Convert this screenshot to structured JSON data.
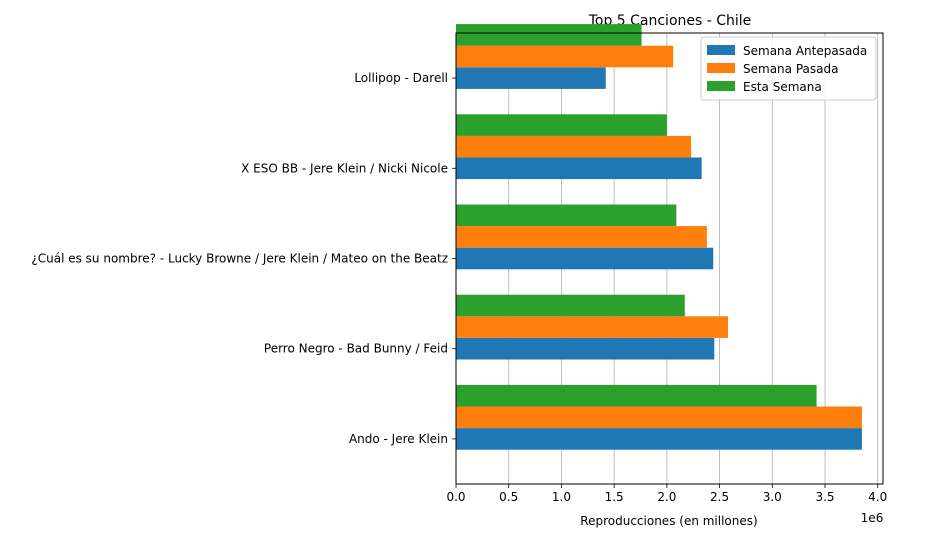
{
  "chart_data": {
    "type": "bar",
    "orientation": "horizontal",
    "title": "Top 5 Canciones - Chile",
    "xlabel": "Reproducciones (en millones)",
    "ylabel": "",
    "x_scale_label": "1e6",
    "xlim": [
      0,
      4050000
    ],
    "x_ticks": [
      0,
      500000,
      1000000,
      1500000,
      2000000,
      2500000,
      3000000,
      3500000,
      4000000
    ],
    "x_tick_labels": [
      "0.0",
      "0.5",
      "1.0",
      "1.5",
      "2.0",
      "2.5",
      "3.0",
      "3.5",
      "4.0"
    ],
    "grid": "vertical",
    "legend_position": "top-right",
    "categories": [
      "Ando - Jere Klein",
      "Perro Negro - Bad Bunny / Feid",
      "¿Cuál es su nombre? - Lucky Browne / Jere Klein / Mateo on the Beatz",
      "X ESO BB - Jere Klein / Nicki Nicole",
      "Lollipop - Darell"
    ],
    "series": [
      {
        "name": "Semana Antepasada",
        "color": "#1f77b4",
        "values": [
          3850000,
          2450000,
          2440000,
          2330000,
          1420000
        ]
      },
      {
        "name": "Semana Pasada",
        "color": "#ff7f0e",
        "values": [
          3850000,
          2580000,
          2380000,
          2230000,
          2060000
        ]
      },
      {
        "name": "Esta Semana",
        "color": "#2ca02c",
        "values": [
          3420000,
          2170000,
          2090000,
          2000000,
          1760000
        ]
      }
    ]
  }
}
